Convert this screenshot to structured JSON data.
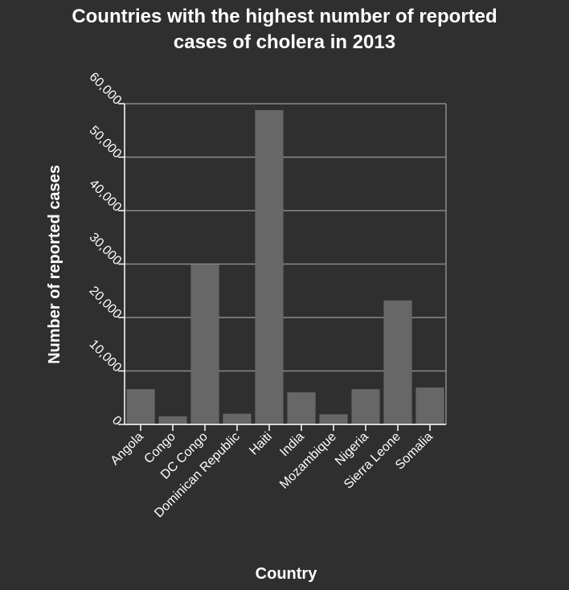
{
  "chart_data": {
    "type": "bar",
    "title_lines": [
      "Countries with the highest number of reported",
      "cases of cholera in 2013"
    ],
    "xlabel": "Country",
    "ylabel": "Number of reported cases",
    "categories": [
      "Angola",
      "Congo",
      "DC Congo",
      "Dominican Republic",
      "Haiti",
      "India",
      "Mozambique",
      "Nigeria",
      "Sierra Leone",
      "Somalia"
    ],
    "values": [
      6600,
      1500,
      29900,
      2000,
      58800,
      6000,
      1900,
      6600,
      23200,
      6900
    ],
    "yticks": [
      "0",
      "10,000",
      "20,000",
      "30,000",
      "40,000",
      "50,000",
      "60,000"
    ],
    "ylim": [
      0,
      60000
    ],
    "grid": true,
    "bar_color": "#676767",
    "grid_color": "#8a8a8a",
    "background_color": "#2f2f2f"
  }
}
